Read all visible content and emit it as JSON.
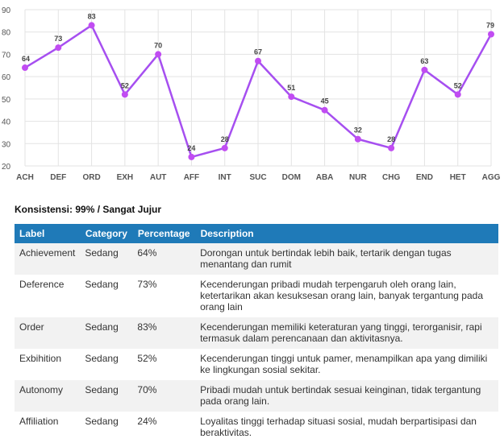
{
  "chart_data": {
    "type": "line",
    "categories": [
      "ACH",
      "DEF",
      "ORD",
      "EXH",
      "AUT",
      "AFF",
      "INT",
      "SUC",
      "DOM",
      "ABA",
      "NUR",
      "CHG",
      "END",
      "HET",
      "AGG"
    ],
    "values": [
      64,
      73,
      83,
      52,
      70,
      24,
      28,
      67,
      51,
      45,
      32,
      28,
      63,
      52,
      79
    ],
    "ylim": [
      20,
      90
    ],
    "yticks": [
      "20",
      "30",
      "40",
      "50",
      "60",
      "70",
      "80",
      "90"
    ],
    "grid": true,
    "line_color": "#a64ff0",
    "point_color": "#c14cf2"
  },
  "consistency": "Konsistensi: 99% / Sangat Jujur",
  "table": {
    "headers": {
      "label": "Label",
      "category": "Category",
      "percentage": "Percentage",
      "description": "Description"
    },
    "rows": [
      {
        "label": "Achievement",
        "category": "Sedang",
        "percentage": "64%",
        "description": "Dorongan untuk bertindak lebih baik, tertarik dengan tugas menantang dan rumit"
      },
      {
        "label": "Deference",
        "category": "Sedang",
        "percentage": "73%",
        "description": "Kecenderungan pribadi mudah terpengaruh oleh orang lain, ketertarikan akan kesuksesan orang lain, banyak tergantung pada orang lain"
      },
      {
        "label": "Order",
        "category": "Sedang",
        "percentage": "83%",
        "description": "Kecenderungan memiliki keteraturan yang tinggi, terorganisir, rapi termasuk dalam perencanaan dan aktivitasnya."
      },
      {
        "label": "Exbihition",
        "category": "Sedang",
        "percentage": "52%",
        "description": "Kecenderungan tinggi untuk pamer, menampilkan apa yang dimiliki ke lingkungan sosial sekitar."
      },
      {
        "label": "Autonomy",
        "category": "Sedang",
        "percentage": "70%",
        "description": "Pribadi mudah untuk bertindak sesuai keinginan, tidak tergantung pada orang lain."
      },
      {
        "label": "Affiliation",
        "category": "Sedang",
        "percentage": "24%",
        "description": "Loyalitas tinggi terhadap situasi sosial, mudah berpartisipasi dan beraktivitas."
      }
    ]
  }
}
